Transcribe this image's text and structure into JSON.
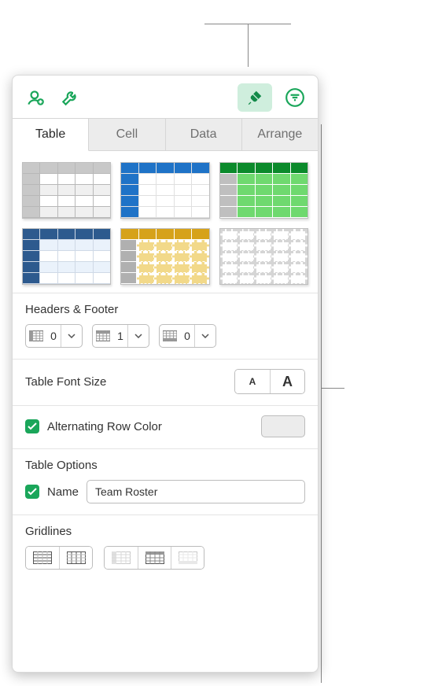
{
  "accent": "#1aa65a",
  "tabs": [
    "Table",
    "Cell",
    "Data",
    "Arrange"
  ],
  "active_tab": 0,
  "headers_footer": {
    "title": "Headers & Footer",
    "col_headers": 0,
    "row_headers": 1,
    "footers": 0
  },
  "font_size": {
    "title": "Table Font Size"
  },
  "alt_row": {
    "label": "Alternating Row Color",
    "checked": true,
    "swatch": "#ececec"
  },
  "options": {
    "title": "Table Options",
    "name_label": "Name",
    "name_checked": true,
    "name_value": "Team Roster"
  },
  "gridlines": {
    "title": "Gridlines"
  },
  "thumbs": [
    {
      "header_row": "#c8c8c8",
      "header_col": "#c8c8c8",
      "body": "#ffffff",
      "alt": "#f0f0f0",
      "grid": "#b8b8b8"
    },
    {
      "header_row": "#1f73c7",
      "header_col": "#1f73c7",
      "body": "#ffffff",
      "alt": "#ffffff",
      "grid": "#e0e0e0"
    },
    {
      "header_row": "#0b8a2b",
      "header_col": "#bfbfbf",
      "body": "#6fd96f",
      "alt": "#6fd96f",
      "grid": "#ffffff"
    },
    {
      "header_row": "#2d5a8e",
      "header_col": "#2d5a8e",
      "body": "#eaf2fb",
      "alt": "#ffffff",
      "grid": "#cfd9e6"
    },
    {
      "header_row": "#d6a21a",
      "header_col": "#b0b0b0",
      "body": "#f2d98a",
      "alt": "#f2d98a",
      "grid": "#ffffff"
    },
    {
      "header_row": "#ffffff",
      "header_col": "#ffffff",
      "body": "#ffffff",
      "alt": "#ffffff",
      "grid": "#d5d5d5"
    }
  ]
}
